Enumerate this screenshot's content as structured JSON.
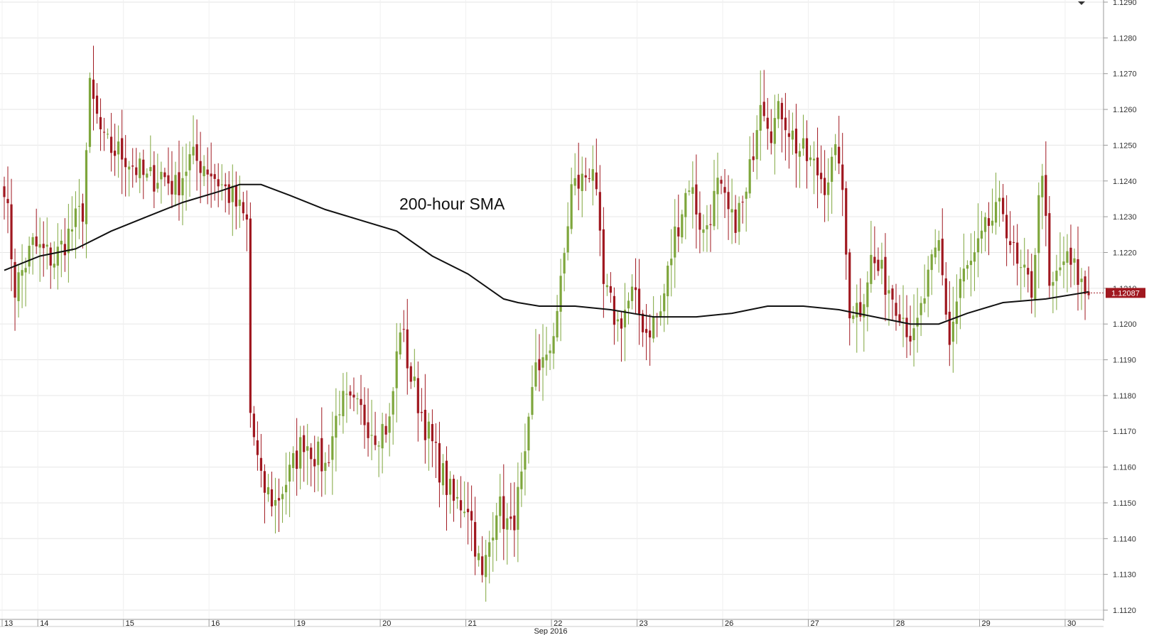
{
  "chart_data": {
    "type": "candlestick",
    "title": "",
    "xlabel": "",
    "ylabel": "",
    "period_label": "Sep 2016",
    "annotation": "200-hour SMA",
    "ylim": [
      1.1115,
      1.129
    ],
    "y_ticks": [
      "1.1120",
      "1.1130",
      "1.1140",
      "1.1150",
      "1.1160",
      "1.1170",
      "1.1180",
      "1.1190",
      "1.1200",
      "1.1210",
      "1.1220",
      "1.1230",
      "1.1240",
      "1.1250",
      "1.1260",
      "1.1270",
      "1.1280",
      "1.1290"
    ],
    "x_ticks": [
      {
        "label": "13",
        "bar": 0
      },
      {
        "label": "14",
        "bar": 10
      },
      {
        "label": "15",
        "bar": 34
      },
      {
        "label": "16",
        "bar": 58
      },
      {
        "label": "19",
        "bar": 82
      },
      {
        "label": "20",
        "bar": 106
      },
      {
        "label": "21",
        "bar": 130
      },
      {
        "label": "22",
        "bar": 154
      },
      {
        "label": "23",
        "bar": 178
      },
      {
        "label": "26",
        "bar": 202
      },
      {
        "label": "27",
        "bar": 226
      },
      {
        "label": "28",
        "bar": 250
      },
      {
        "label": "29",
        "bar": 274
      },
      {
        "label": "30",
        "bar": 298
      }
    ],
    "last_price": "1.12087",
    "colors": {
      "up": "#7ea63c",
      "down": "#a01820",
      "sma": "#111111",
      "grid": "#e6e6e6",
      "last_bg": "#a01820"
    },
    "bars_count": 305,
    "key_points": [
      [
        0,
        1.124
      ],
      [
        3,
        1.121
      ],
      [
        8,
        1.1222
      ],
      [
        14,
        1.1218
      ],
      [
        18,
        1.1225
      ],
      [
        22,
        1.1232
      ],
      [
        24,
        1.1265
      ],
      [
        28,
        1.125
      ],
      [
        34,
        1.1247
      ],
      [
        40,
        1.124
      ],
      [
        44,
        1.1242
      ],
      [
        48,
        1.1238
      ],
      [
        52,
        1.1246
      ],
      [
        56,
        1.1245
      ],
      [
        60,
        1.124
      ],
      [
        64,
        1.1235
      ],
      [
        68,
        1.1228
      ],
      [
        69,
        1.1175
      ],
      [
        72,
        1.1155
      ],
      [
        76,
        1.115
      ],
      [
        80,
        1.1158
      ],
      [
        84,
        1.1168
      ],
      [
        90,
        1.116
      ],
      [
        94,
        1.1178
      ],
      [
        100,
        1.1175
      ],
      [
        104,
        1.117
      ],
      [
        108,
        1.1172
      ],
      [
        111,
        1.12
      ],
      [
        114,
        1.1185
      ],
      [
        118,
        1.1172
      ],
      [
        122,
        1.116
      ],
      [
        126,
        1.115
      ],
      [
        130,
        1.115
      ],
      [
        134,
        1.1128
      ],
      [
        138,
        1.115
      ],
      [
        142,
        1.1142
      ],
      [
        146,
        1.116
      ],
      [
        149,
        1.119
      ],
      [
        152,
        1.1188
      ],
      [
        156,
        1.121
      ],
      [
        159,
        1.1238
      ],
      [
        162,
        1.124
      ],
      [
        165,
        1.1245
      ],
      [
        168,
        1.121
      ],
      [
        172,
        1.12
      ],
      [
        176,
        1.1208
      ],
      [
        180,
        1.1198
      ],
      [
        184,
        1.1203
      ],
      [
        188,
        1.1225
      ],
      [
        192,
        1.124
      ],
      [
        196,
        1.1225
      ],
      [
        200,
        1.1238
      ],
      [
        204,
        1.1228
      ],
      [
        208,
        1.1235
      ],
      [
        212,
        1.1265
      ],
      [
        215,
        1.1255
      ],
      [
        218,
        1.126
      ],
      [
        222,
        1.125
      ],
      [
        226,
        1.1245
      ],
      [
        230,
        1.124
      ],
      [
        234,
        1.1248
      ],
      [
        237,
        1.1205
      ],
      [
        240,
        1.1205
      ],
      [
        243,
        1.1218
      ],
      [
        247,
        1.1212
      ],
      [
        251,
        1.1205
      ],
      [
        255,
        1.1195
      ],
      [
        259,
        1.1212
      ],
      [
        262,
        1.1222
      ],
      [
        265,
        1.1195
      ],
      [
        268,
        1.1212
      ],
      [
        272,
        1.1218
      ],
      [
        276,
        1.1228
      ],
      [
        280,
        1.1232
      ],
      [
        284,
        1.1215
      ],
      [
        288,
        1.121
      ],
      [
        291,
        1.1245
      ],
      [
        293,
        1.1208
      ],
      [
        297,
        1.1218
      ],
      [
        300,
        1.1215
      ],
      [
        303,
        1.1209
      ]
    ],
    "sma": [
      [
        0,
        1.1215
      ],
      [
        10,
        1.1219
      ],
      [
        20,
        1.1221
      ],
      [
        30,
        1.1226
      ],
      [
        40,
        1.123
      ],
      [
        50,
        1.1234
      ],
      [
        60,
        1.1237
      ],
      [
        66,
        1.1239
      ],
      [
        72,
        1.1239
      ],
      [
        80,
        1.1236
      ],
      [
        90,
        1.1232
      ],
      [
        100,
        1.1229
      ],
      [
        110,
        1.1226
      ],
      [
        120,
        1.1219
      ],
      [
        130,
        1.1214
      ],
      [
        140,
        1.1207
      ],
      [
        144,
        1.1206
      ],
      [
        150,
        1.1205
      ],
      [
        160,
        1.1205
      ],
      [
        170,
        1.1204
      ],
      [
        182,
        1.1202
      ],
      [
        194,
        1.1202
      ],
      [
        204,
        1.1203
      ],
      [
        214,
        1.1205
      ],
      [
        224,
        1.1205
      ],
      [
        234,
        1.1204
      ],
      [
        244,
        1.1202
      ],
      [
        254,
        1.12
      ],
      [
        262,
        1.12
      ],
      [
        270,
        1.1203
      ],
      [
        280,
        1.1206
      ],
      [
        292,
        1.1207
      ],
      [
        304,
        1.1209
      ]
    ]
  }
}
